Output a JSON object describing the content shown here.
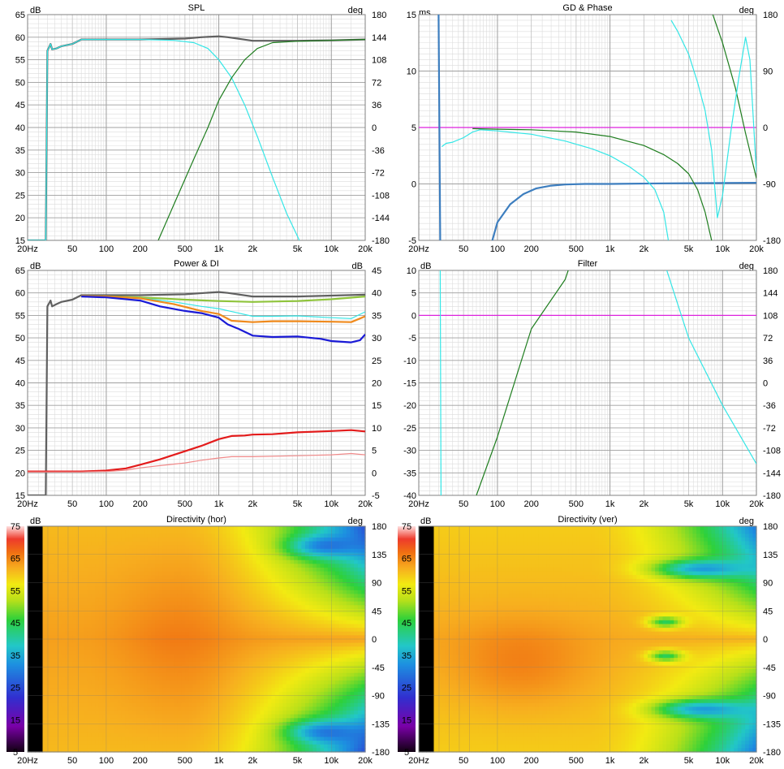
{
  "panels": {
    "spl": {
      "title": "SPL",
      "left_unit": "dB",
      "right_unit": "deg",
      "left_ticks": [
        65,
        60,
        55,
        50,
        45,
        40,
        35,
        30,
        25,
        20,
        15
      ],
      "right_ticks": [
        180,
        144,
        108,
        72,
        36,
        0,
        -36,
        -72,
        -108,
        -144,
        -180
      ],
      "x_ticks": [
        "20Hz",
        "50",
        "100",
        "200",
        "500",
        "1k",
        "2k",
        "5k",
        "10k",
        "20k"
      ]
    },
    "gd": {
      "title": "GD & Phase",
      "left_unit": "ms",
      "right_unit": "deg",
      "left_ticks": [
        15,
        10,
        5,
        0,
        -5
      ],
      "right_ticks": [
        180,
        90,
        0,
        -90,
        -180
      ],
      "x_ticks": [
        "20Hz",
        "50",
        "100",
        "200",
        "500",
        "1k",
        "2k",
        "5k",
        "10k",
        "20k"
      ]
    },
    "power": {
      "title": "Power & DI",
      "left_unit": "dB",
      "right_unit": "dB",
      "left_ticks": [
        65,
        60,
        55,
        50,
        45,
        40,
        35,
        30,
        25,
        20,
        15
      ],
      "right_ticks": [
        45,
        40,
        35,
        30,
        25,
        20,
        15,
        10,
        5,
        0,
        -5
      ],
      "x_ticks": [
        "20Hz",
        "50",
        "100",
        "200",
        "500",
        "1k",
        "2k",
        "5k",
        "10k",
        "20k"
      ]
    },
    "filter": {
      "title": "Filter",
      "left_unit": "dB",
      "right_unit": "deg",
      "left_ticks": [
        10,
        5,
        0,
        -5,
        -10,
        -15,
        -20,
        -25,
        -30,
        -35,
        -40
      ],
      "right_ticks": [
        180,
        144,
        108,
        72,
        36,
        0,
        -36,
        -72,
        -108,
        -144,
        -180
      ],
      "x_ticks": [
        "20Hz",
        "50",
        "100",
        "200",
        "500",
        "1k",
        "2k",
        "5k",
        "10k",
        "20k"
      ]
    },
    "dir_hor": {
      "title": "Directivity (hor)",
      "left_unit": "dB",
      "right_unit": "deg",
      "scale_ticks": [
        75,
        65,
        55,
        45,
        35,
        25,
        15,
        5
      ],
      "right_ticks": [
        180,
        135,
        90,
        45,
        0,
        -45,
        -90,
        -135,
        -180
      ],
      "x_ticks": [
        "20Hz",
        "50",
        "100",
        "200",
        "500",
        "1k",
        "2k",
        "5k",
        "10k",
        "20k"
      ]
    },
    "dir_ver": {
      "title": "Directivity (ver)",
      "left_unit": "dB",
      "right_unit": "deg",
      "scale_ticks": [
        75,
        65,
        55,
        45,
        35,
        25,
        15,
        5
      ],
      "right_ticks": [
        180,
        135,
        90,
        45,
        0,
        -45,
        -90,
        -135,
        -180
      ],
      "x_ticks": [
        "20Hz",
        "50",
        "100",
        "200",
        "500",
        "1k",
        "2k",
        "5k",
        "10k",
        "20k"
      ]
    }
  },
  "colors": {
    "grid_major": "#a0a0a0",
    "grid_minor": "#dcdcdc",
    "grey": "#606060",
    "cyan": "#33e6e6",
    "green": "#1e7d1e",
    "steel": "#3d7ebf",
    "magenta": "#dd22dd",
    "lime": "#8fc43b",
    "orange": "#f08a1c",
    "blue": "#1a1ad6",
    "red": "#e31b1b",
    "pink": "#f08a8a"
  },
  "chart_data": [
    {
      "type": "line",
      "title": "SPL",
      "xscale": "log",
      "xlim": [
        20,
        20000
      ],
      "ylim": [
        15,
        65
      ],
      "y2lim": [
        -180,
        180
      ],
      "series": [
        {
          "color": "grey",
          "x": [
            20,
            29,
            30,
            32,
            33,
            36,
            40,
            50,
            60,
            100,
            200,
            500,
            700,
            1000,
            1200,
            2000,
            5000,
            10000,
            20000
          ],
          "y": [
            15,
            15,
            57,
            58.5,
            57.3,
            57.5,
            58,
            58.5,
            59.5,
            59.5,
            59.5,
            59.7,
            60,
            60.2,
            60,
            59.2,
            59.2,
            59.3,
            59.5
          ]
        },
        {
          "color": "cyan",
          "x": [
            20,
            29,
            30,
            32,
            33,
            36,
            40,
            50,
            60,
            100,
            200,
            400,
            600,
            800,
            1000,
            1300,
            1700,
            2200,
            3000,
            4000,
            5200
          ],
          "y": [
            15,
            15,
            57,
            58.5,
            57.3,
            57.5,
            58,
            58.5,
            59.5,
            59.5,
            59.5,
            59.3,
            58.8,
            57.5,
            55,
            51,
            45,
            38,
            29,
            21,
            15
          ]
        },
        {
          "color": "green",
          "x": [
            290,
            400,
            600,
            800,
            1000,
            1300,
            1700,
            2200,
            3000,
            5000,
            10000,
            20000
          ],
          "y": [
            15,
            23,
            33,
            40,
            46,
            51,
            55,
            57.5,
            58.8,
            59.1,
            59.3,
            59.5
          ]
        }
      ]
    },
    {
      "type": "line",
      "title": "GD & Phase",
      "xscale": "log",
      "xlim": [
        20,
        20000
      ],
      "ylim": [
        -5,
        15
      ],
      "y2lim": [
        -180,
        180
      ],
      "series": [
        {
          "color": "magenta",
          "x": [
            20,
            20000
          ],
          "y": [
            5,
            5
          ]
        },
        {
          "color": "steel",
          "x": [
            30,
            31
          ],
          "y": [
            15,
            -5
          ]
        },
        {
          "color": "steel",
          "x": [
            90,
            100,
            130,
            170,
            220,
            300,
            400,
            600,
            1000,
            3000,
            20000
          ],
          "y": [
            -5,
            -3.4,
            -1.8,
            -0.9,
            -0.4,
            -0.15,
            -0.05,
            0,
            0,
            0.05,
            0.1
          ]
        },
        {
          "color": "cyan",
          "x": [
            32,
            35,
            40,
            50,
            60,
            70,
            100,
            200,
            400,
            700,
            1000,
            1500,
            2000,
            2500,
            3000,
            3300
          ],
          "y": [
            3.3,
            3.6,
            3.7,
            4.1,
            4.6,
            4.8,
            4.7,
            4.4,
            3.8,
            3.1,
            2.5,
            1.5,
            0.6,
            -0.5,
            -2.5,
            -5
          ]
        },
        {
          "color": "green",
          "x": [
            60,
            100,
            200,
            500,
            1000,
            2000,
            3000,
            4000,
            5000,
            6000,
            7000,
            8000
          ],
          "y": [
            4.9,
            4.85,
            4.8,
            4.6,
            4.2,
            3.4,
            2.6,
            1.8,
            0.9,
            -0.5,
            -2.5,
            -5
          ]
        },
        {
          "color": "green",
          "x": [
            8200,
            10000,
            13000,
            16000,
            20000
          ],
          "y": [
            15,
            12.5,
            8.5,
            4.5,
            0.5
          ]
        },
        {
          "color": "cyan",
          "x": [
            3500,
            4000,
            5000,
            6000,
            7000,
            8000,
            9000,
            10000,
            12000,
            14000,
            16000,
            17500,
            20000
          ],
          "y": [
            14.5,
            13.5,
            11.5,
            9,
            6.5,
            3,
            -3,
            -1,
            5,
            9.5,
            13,
            11,
            1
          ]
        }
      ]
    },
    {
      "type": "line",
      "title": "Power & DI",
      "xscale": "log",
      "xlim": [
        20,
        20000
      ],
      "ylim": [
        15,
        65
      ],
      "y2lim": [
        -5,
        45
      ],
      "series": [
        {
          "color": "grey",
          "x": [
            20,
            29,
            30,
            32,
            33,
            36,
            40,
            50,
            60,
            100,
            200,
            500,
            1000,
            1200,
            2000,
            5000,
            10000,
            20000
          ],
          "y": [
            15,
            15,
            57,
            58.3,
            57,
            57.5,
            58,
            58.5,
            59.5,
            59.5,
            59.5,
            59.7,
            60.2,
            60,
            59.2,
            59.2,
            59.4,
            59.6
          ]
        },
        {
          "color": "lime",
          "x": [
            60,
            100,
            200,
            500,
            1000,
            2000,
            5000,
            10000,
            20000
          ],
          "y": [
            59.3,
            59.2,
            59,
            58.5,
            58.2,
            58,
            58.2,
            58.6,
            59.2
          ]
        },
        {
          "color": "cyan",
          "x": [
            60,
            100,
            200,
            400,
            700,
            1000,
            1500,
            2000,
            3000,
            5000,
            10000,
            15000,
            20000
          ],
          "y": [
            59.3,
            59.2,
            58.9,
            58,
            57,
            56.5,
            55.5,
            54.8,
            54.8,
            54.9,
            54.5,
            54.3,
            55.8
          ]
        },
        {
          "color": "orange",
          "x": [
            60,
            100,
            200,
            400,
            700,
            1000,
            1300,
            2000,
            3000,
            5000,
            10000,
            15000,
            20000
          ],
          "y": [
            59.3,
            59.2,
            58.8,
            57.5,
            56,
            55.3,
            53.8,
            53.5,
            53.7,
            53.7,
            53.6,
            53.5,
            54.8
          ]
        },
        {
          "color": "blue",
          "x": [
            60,
            100,
            200,
            300,
            500,
            700,
            1000,
            1200,
            1500,
            2000,
            3000,
            5000,
            8000,
            10000,
            15000,
            18000,
            20000
          ],
          "y": [
            59.2,
            59,
            58.3,
            57,
            56,
            55.5,
            54.5,
            53,
            52,
            50.5,
            50.2,
            50.3,
            49.8,
            49.3,
            49,
            49.5,
            50.8
          ]
        },
        {
          "color": "red",
          "x": [
            20,
            60,
            100,
            150,
            200,
            300,
            500,
            700,
            1000,
            1300,
            1700,
            2000,
            3000,
            5000,
            10000,
            15000,
            20000
          ],
          "y": [
            20.3,
            20.3,
            20.5,
            21,
            21.8,
            23,
            24.8,
            26,
            27.5,
            28.2,
            28.3,
            28.5,
            28.6,
            29,
            29.3,
            29.5,
            29.2
          ]
        },
        {
          "color": "pink",
          "x": [
            20,
            60,
            100,
            150,
            200,
            300,
            500,
            700,
            1000,
            1300,
            2000,
            5000,
            10000,
            15000,
            20000
          ],
          "y": [
            20.2,
            20.2,
            20.3,
            20.6,
            21.1,
            21.6,
            22.2,
            22.8,
            23.3,
            23.6,
            23.6,
            23.8,
            24,
            24.3,
            24
          ]
        }
      ]
    },
    {
      "type": "line",
      "title": "Filter",
      "xscale": "log",
      "xlim": [
        20,
        20000
      ],
      "ylim": [
        -40,
        10
      ],
      "y2lim": [
        -180,
        180
      ],
      "series": [
        {
          "color": "magenta",
          "x": [
            20,
            20000
          ],
          "y": [
            0,
            0
          ]
        },
        {
          "color": "cyan",
          "x": [
            31,
            31.5
          ],
          "y": [
            10,
            -40
          ]
        },
        {
          "color": "green",
          "x": [
            65,
            100,
            200,
            400,
            425
          ],
          "y": [
            -40,
            -27,
            -3,
            8,
            10
          ]
        },
        {
          "color": "cyan",
          "x": [
            3200,
            5000,
            10000,
            20000
          ],
          "y": [
            10,
            -5,
            -20,
            -33
          ]
        }
      ]
    },
    {
      "type": "heatmap",
      "title": "Directivity (hor)",
      "xscale": "log",
      "xlim": [
        20,
        20000
      ],
      "ylim": [
        -180,
        180
      ],
      "zlim": [
        5,
        75
      ],
      "features": [
        {
          "f": 300,
          "a": 0,
          "level": 64,
          "note": "broad orange core"
        },
        {
          "f": 5000,
          "a": 150,
          "level": 30,
          "note": "blue lobe top"
        },
        {
          "f": 5000,
          "a": -150,
          "level": 30,
          "note": "blue lobe bottom"
        }
      ]
    },
    {
      "type": "heatmap",
      "title": "Directivity (ver)",
      "xscale": "log",
      "xlim": [
        20,
        20000
      ],
      "ylim": [
        -180,
        180
      ],
      "zlim": [
        5,
        75
      ],
      "features": [
        {
          "f": 100,
          "a": -40,
          "level": 66,
          "note": "orange core"
        },
        {
          "f": 2500,
          "a": 30,
          "level": 44,
          "note": "green notch"
        },
        {
          "f": 5000,
          "a": 120,
          "level": 30,
          "note": "blue ridge top"
        },
        {
          "f": 5000,
          "a": -120,
          "level": 30,
          "note": "blue ridge bottom"
        }
      ]
    }
  ]
}
